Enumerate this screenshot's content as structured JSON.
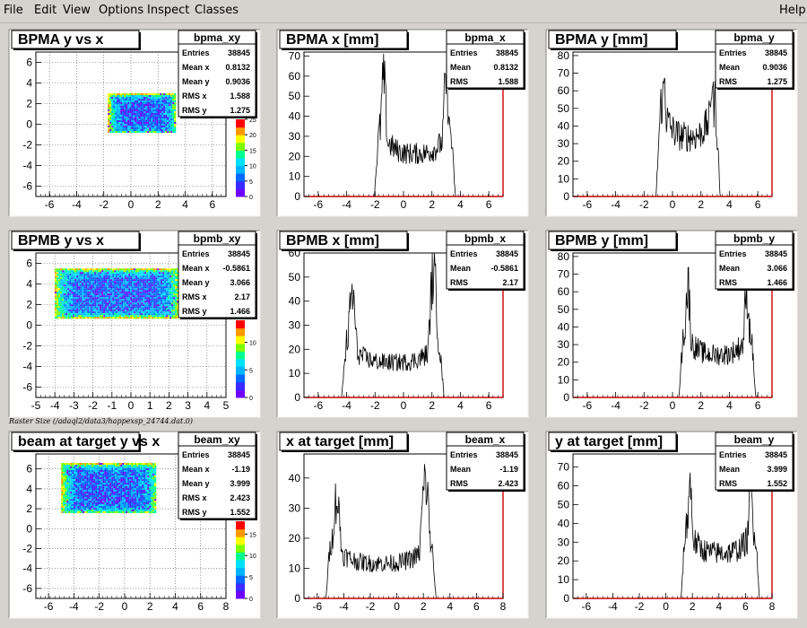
{
  "menu": {
    "items": [
      "File",
      "Edit",
      "View",
      "Options",
      "Inspect",
      "Classes"
    ],
    "help": "Help"
  },
  "canvas_caption": "Raster Size (/adaql2/data3/happexsp_24744.dat.0)",
  "colors": {
    "background": "#d6d3ce",
    "pad": "#ffffff",
    "hist_line": "#000000",
    "axis_red": "#cc0000"
  },
  "chart_data": [
    {
      "type": "heatmap",
      "title": "BPMA y vs x",
      "stats_name": "bpma_xy",
      "stats": [
        [
          "Entries",
          "38845"
        ],
        [
          "Mean x",
          "0.8132"
        ],
        [
          "Mean y",
          "0.9036"
        ],
        [
          "RMS x",
          "1.588"
        ],
        [
          "RMS y",
          "1.275"
        ]
      ],
      "xlim": [
        -7,
        7
      ],
      "ylim": [
        -7,
        7
      ],
      "xticks": [
        "-6",
        "-4",
        "-2",
        "0",
        "2",
        "4",
        "6"
      ],
      "yticks": [
        "-6",
        "-4",
        "-2",
        "0",
        "2",
        "4",
        "6"
      ],
      "region": {
        "x0": -1.7,
        "x1": 3.3,
        "y0": -0.8,
        "y1": 3.0
      },
      "zticks": [
        "0",
        "5",
        "10",
        "15",
        "20",
        "25"
      ],
      "zmax": 25
    },
    {
      "type": "bar",
      "title": "BPMA x [mm]",
      "stats_name": "bpma_x",
      "stats": [
        [
          "Entries",
          "38845"
        ],
        [
          "Mean",
          "0.8132"
        ],
        [
          "RMS",
          "1.588"
        ]
      ],
      "xlim": [
        -7,
        7
      ],
      "ylim": [
        0,
        72
      ],
      "xticks": [
        "-6",
        "-4",
        "-2",
        "0",
        "2",
        "4",
        "6"
      ],
      "yticks": [
        "0",
        "10",
        "20",
        "30",
        "40",
        "50",
        "60",
        "70"
      ],
      "profile": {
        "left": -1.7,
        "right": 3.3,
        "peak_left": 60,
        "peak_right": 60,
        "floor": 22
      }
    },
    {
      "type": "bar",
      "title": "BPMA y [mm]",
      "stats_name": "bpma_y",
      "stats": [
        [
          "Entries",
          "38845"
        ],
        [
          "Mean",
          "0.9036"
        ],
        [
          "RMS",
          "1.275"
        ]
      ],
      "xlim": [
        -7,
        7
      ],
      "ylim": [
        0,
        82
      ],
      "xticks": [
        "-6",
        "-4",
        "-2",
        "0",
        "2",
        "4",
        "6"
      ],
      "yticks": [
        "0",
        "10",
        "20",
        "30",
        "40",
        "50",
        "60",
        "70",
        "80"
      ],
      "profile": {
        "left": -0.8,
        "right": 3.0,
        "peak_left": 68,
        "peak_right": 68,
        "floor": 35
      }
    },
    {
      "type": "heatmap",
      "title": "BPMB y vs x",
      "stats_name": "bpmb_xy",
      "stats": [
        [
          "Entries",
          "38845"
        ],
        [
          "Mean x",
          "-0.5861"
        ],
        [
          "Mean y",
          "3.066"
        ],
        [
          "RMS x",
          "2.17"
        ],
        [
          "RMS y",
          "1.466"
        ]
      ],
      "xlim": [
        -5,
        5
      ],
      "ylim": [
        -7,
        7
      ],
      "xticks": [
        "-5",
        "-4",
        "-3",
        "-2",
        "-1",
        "0",
        "1",
        "2",
        "3",
        "4",
        "5"
      ],
      "yticks": [
        "-6",
        "-4",
        "-2",
        "0",
        "2",
        "4",
        "6"
      ],
      "region": {
        "x0": -4.0,
        "x1": 2.5,
        "y0": 0.8,
        "y1": 5.5
      },
      "zticks": [
        "0",
        "5",
        "10"
      ],
      "zmax": 14
    },
    {
      "type": "bar",
      "title": "BPMB x [mm]",
      "stats_name": "bpmb_x",
      "stats": [
        [
          "Entries",
          "38845"
        ],
        [
          "Mean",
          "-0.5861"
        ],
        [
          "RMS",
          "2.17"
        ]
      ],
      "xlim": [
        -7,
        7
      ],
      "ylim": [
        0,
        60
      ],
      "xticks": [
        "-6",
        "-4",
        "-2",
        "0",
        "2",
        "4",
        "6"
      ],
      "yticks": [
        "0",
        "10",
        "20",
        "30",
        "40",
        "50",
        "60"
      ],
      "profile": {
        "left": -4.0,
        "right": 2.5,
        "peak_left": 44,
        "peak_right": 53,
        "floor": 15
      }
    },
    {
      "type": "bar",
      "title": "BPMB y [mm]",
      "stats_name": "bpmb_y",
      "stats": [
        [
          "Entries",
          "38845"
        ],
        [
          "Mean",
          "3.066"
        ],
        [
          "RMS",
          "1.466"
        ]
      ],
      "xlim": [
        -7,
        7
      ],
      "ylim": [
        0,
        82
      ],
      "xticks": [
        "-6",
        "-4",
        "-2",
        "0",
        "2",
        "4",
        "6"
      ],
      "yticks": [
        "0",
        "10",
        "20",
        "30",
        "40",
        "50",
        "60",
        "70",
        "80"
      ],
      "profile": {
        "left": 0.8,
        "right": 5.5,
        "peak_left": 65,
        "peak_right": 62,
        "floor": 25
      }
    },
    {
      "type": "heatmap",
      "title": "beam at target y vs x",
      "stats_name": "beam_xy",
      "stats": [
        [
          "Entries",
          "38845"
        ],
        [
          "Mean x",
          "-1.19"
        ],
        [
          "Mean y",
          "3.999"
        ],
        [
          "RMS x",
          "2.423"
        ],
        [
          "RMS y",
          "1.552"
        ]
      ],
      "xlim": [
        -7,
        8
      ],
      "ylim": [
        -7,
        7.5
      ],
      "xticks": [
        "-6",
        "-4",
        "-2",
        "0",
        "2",
        "4",
        "6",
        "8"
      ],
      "yticks": [
        "-6",
        "-4",
        "-2",
        "0",
        "2",
        "4",
        "6"
      ],
      "region": {
        "x0": -5.0,
        "x1": 2.5,
        "y0": 1.6,
        "y1": 6.6
      },
      "zticks": [
        "0",
        "5",
        "10",
        "15"
      ],
      "zmax": 18
    },
    {
      "type": "bar",
      "title": "x at target [mm]",
      "stats_name": "beam_x",
      "stats": [
        [
          "Entries",
          "38845"
        ],
        [
          "Mean",
          "-1.19"
        ],
        [
          "RMS",
          "2.423"
        ]
      ],
      "xlim": [
        -7,
        8
      ],
      "ylim": [
        0,
        48
      ],
      "xticks": [
        "-6",
        "-4",
        "-2",
        "0",
        "2",
        "4",
        "6",
        "8"
      ],
      "yticks": [
        "0",
        "10",
        "20",
        "30",
        "40"
      ],
      "profile": {
        "left": -5.0,
        "right": 2.6,
        "peak_left": 34,
        "peak_right": 40,
        "floor": 12
      }
    },
    {
      "type": "bar",
      "title": "y at target [mm]",
      "stats_name": "beam_y",
      "stats": [
        [
          "Entries",
          "38845"
        ],
        [
          "Mean",
          "3.999"
        ],
        [
          "RMS",
          "1.552"
        ]
      ],
      "xlim": [
        -7,
        8
      ],
      "ylim": [
        0,
        77
      ],
      "xticks": [
        "-6",
        "-4",
        "-2",
        "0",
        "2",
        "4",
        "6",
        "8"
      ],
      "yticks": [
        "0",
        "10",
        "20",
        "30",
        "40",
        "50",
        "60",
        "70"
      ],
      "profile": {
        "left": 1.5,
        "right": 6.7,
        "peak_left": 62,
        "peak_right": 58,
        "floor": 25
      }
    }
  ]
}
